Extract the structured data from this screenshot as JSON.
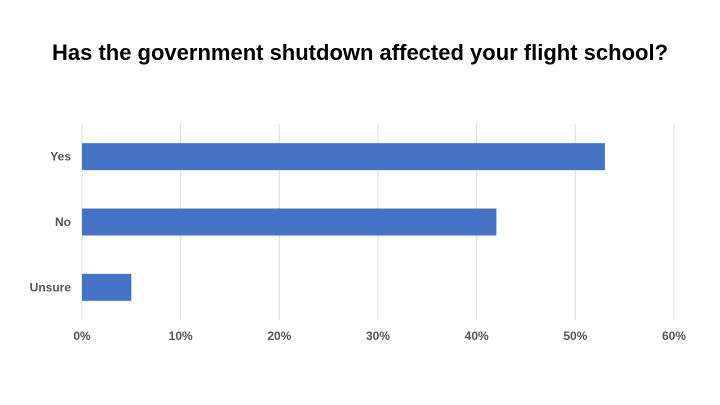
{
  "chart_data": {
    "type": "bar",
    "orientation": "horizontal",
    "title": "Has the government shutdown affected your flight school?",
    "categories": [
      "Yes",
      "No",
      "Unsure"
    ],
    "values": [
      53,
      42,
      5
    ],
    "value_format": "percent",
    "xlim": [
      0,
      60
    ],
    "x_ticks": [
      0,
      10,
      20,
      30,
      40,
      50,
      60
    ],
    "x_tick_labels": [
      "0%",
      "10%",
      "20%",
      "30%",
      "40%",
      "50%",
      "60%"
    ],
    "xlabel": "",
    "ylabel": "",
    "grid": true,
    "legend": "none",
    "bar_color": "#4472C4",
    "grid_color": "#DDDDDD"
  }
}
